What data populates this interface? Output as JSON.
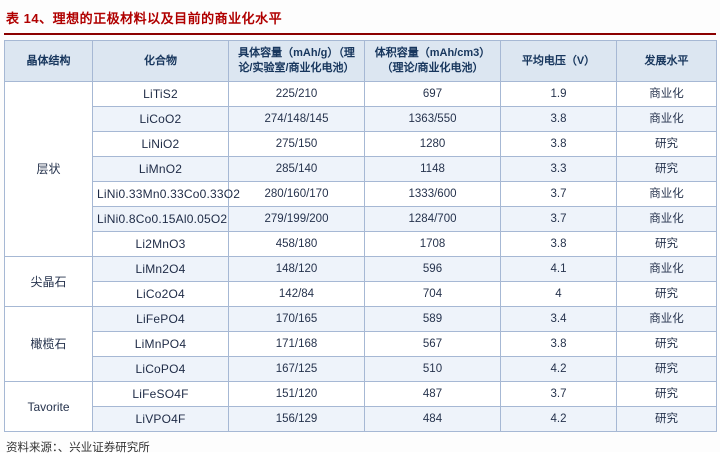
{
  "title": "表 14、理想的正极材料以及目前的商业化水平",
  "source": "资料来源：、兴业证券研究所",
  "colors": {
    "title_text": "#b00000",
    "title_rule": "#8b0000",
    "header_bg": "#dce6f1",
    "header_text": "#17365d",
    "table_border": "#a6b8d4",
    "row_alt_bg": "#eef3fa",
    "cell_text": "#26334d"
  },
  "table": {
    "headers": [
      "晶体结构",
      "化合物",
      "具体容量（mAh/g）（理论/实验室/商业化电池）",
      "体积容量（mAh/cm3）（理论/商业化电池）",
      "平均电压（V）",
      "发展水平"
    ],
    "groups": [
      {
        "name": "层状",
        "rows": [
          {
            "compound": "LiTiS2",
            "specific": "225/210",
            "volumetric": "697",
            "voltage": "1.9",
            "level": "商业化"
          },
          {
            "compound": "LiCoO2",
            "specific": "274/148/145",
            "volumetric": "1363/550",
            "voltage": "3.8",
            "level": "商业化"
          },
          {
            "compound": "LiNiO2",
            "specific": "275/150",
            "volumetric": "1280",
            "voltage": "3.8",
            "level": "研究"
          },
          {
            "compound": "LiMnO2",
            "specific": "285/140",
            "volumetric": "1148",
            "voltage": "3.3",
            "level": "研究"
          },
          {
            "compound": "LiNi0.33Mn0.33Co0.33O2",
            "specific": "280/160/170",
            "volumetric": "1333/600",
            "voltage": "3.7",
            "level": "商业化"
          },
          {
            "compound": "LiNi0.8Co0.15Al0.05O2",
            "specific": "279/199/200",
            "volumetric": "1284/700",
            "voltage": "3.7",
            "level": "商业化"
          },
          {
            "compound": "Li2MnO3",
            "specific": "458/180",
            "volumetric": "1708",
            "voltage": "3.8",
            "level": "研究"
          }
        ]
      },
      {
        "name": "尖晶石",
        "rows": [
          {
            "compound": "LiMn2O4",
            "specific": "148/120",
            "volumetric": "596",
            "voltage": "4.1",
            "level": "商业化"
          },
          {
            "compound": "LiCo2O4",
            "specific": "142/84",
            "volumetric": "704",
            "voltage": "4",
            "level": "研究"
          }
        ]
      },
      {
        "name": "橄榄石",
        "rows": [
          {
            "compound": "LiFePO4",
            "specific": "170/165",
            "volumetric": "589",
            "voltage": "3.4",
            "level": "商业化"
          },
          {
            "compound": "LiMnPO4",
            "specific": "171/168",
            "volumetric": "567",
            "voltage": "3.8",
            "level": "研究"
          },
          {
            "compound": "LiCoPO4",
            "specific": "167/125",
            "volumetric": "510",
            "voltage": "4.2",
            "level": "研究"
          }
        ]
      },
      {
        "name": "Tavorite",
        "rows": [
          {
            "compound": "LiFeSO4F",
            "specific": "151/120",
            "volumetric": "487",
            "voltage": "3.7",
            "level": "研究"
          },
          {
            "compound": "LiVPO4F",
            "specific": "156/129",
            "volumetric": "484",
            "voltage": "4.2",
            "level": "研究"
          }
        ]
      }
    ]
  }
}
